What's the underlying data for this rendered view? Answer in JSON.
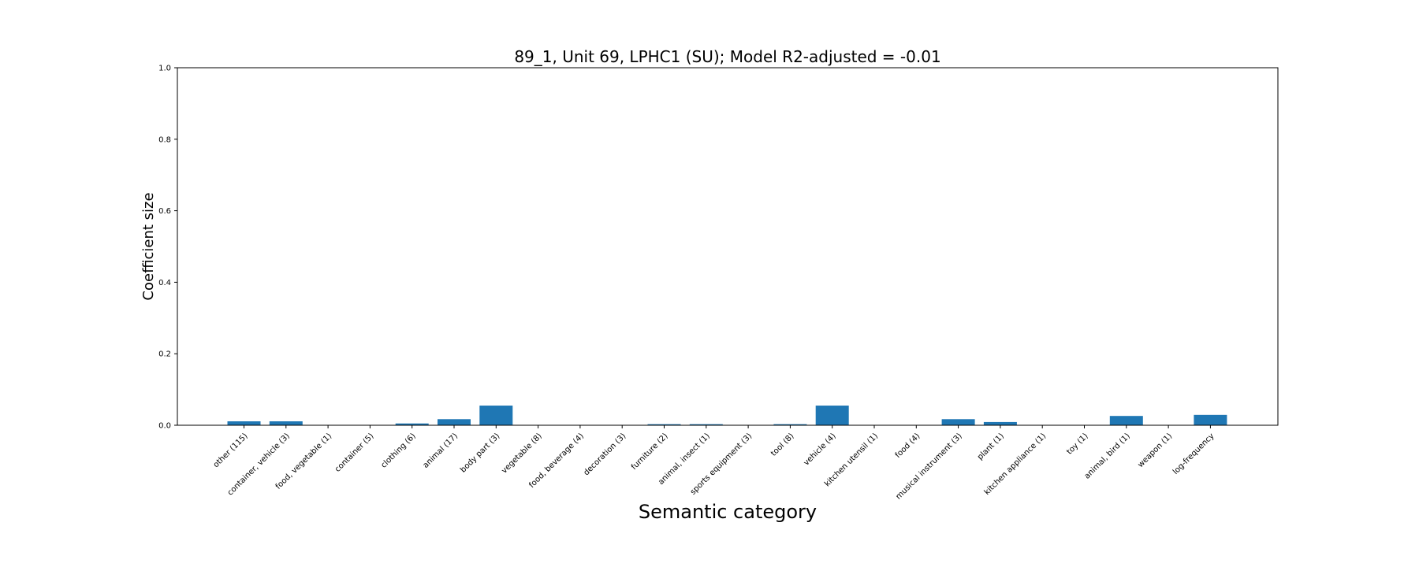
{
  "chart_data": {
    "type": "bar",
    "title": "89_1, Unit 69, LPHC1 (SU); Model R2-adjusted = -0.01",
    "xlabel": "Semantic category",
    "ylabel": "Coefficient size",
    "ylim": [
      0.0,
      1.0
    ],
    "yticks": [
      "0.0",
      "0.2",
      "0.4",
      "0.6",
      "0.8",
      "1.0"
    ],
    "bar_color": "#1f77b4",
    "grid": false,
    "categories": [
      "other (115)",
      "container, vehicle (3)",
      "food, vegetable (1)",
      "container (5)",
      "clothing (6)",
      "animal (17)",
      "body part (3)",
      "vegetable (8)",
      "food, beverage (4)",
      "decoration (3)",
      "furniture (2)",
      "animal, insect (1)",
      "sports equipment (3)",
      "tool (8)",
      "vehicle (4)",
      "kitchen utensil (1)",
      "food (4)",
      "musical instrument (3)",
      "plant (1)",
      "kitchen appliance (1)",
      "toy (1)",
      "animal, bird (1)",
      "weapon (1)",
      "log-frequency"
    ],
    "values": [
      0.011,
      0.011,
      0.0,
      0.0,
      0.005,
      0.017,
      0.055,
      0.0,
      0.0,
      0.0,
      0.003,
      0.003,
      0.0,
      0.003,
      0.055,
      0.0,
      0.0,
      0.017,
      0.009,
      0.0,
      0.0,
      0.026,
      0.0,
      0.029
    ]
  }
}
